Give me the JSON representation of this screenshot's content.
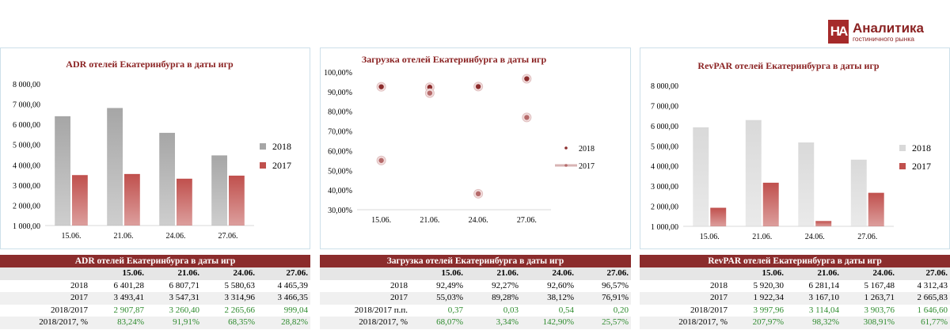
{
  "logo": {
    "mark": "НА",
    "main": "Аналитика",
    "sub": "гостиничного рынка"
  },
  "chart_data": [
    {
      "type": "bar",
      "title": "ADR отелей Екатеринбурга в даты игр",
      "categories": [
        "15.06.",
        "21.06.",
        "24.06.",
        "27.06."
      ],
      "series": [
        {
          "name": "2018",
          "values": [
            6401.28,
            6807.71,
            5580.63,
            4465.39
          ],
          "color": "#a6a6a6"
        },
        {
          "name": "2017",
          "values": [
            3493.41,
            3547.31,
            3314.96,
            3466.35
          ],
          "color": "#c0504d"
        }
      ],
      "ylim": [
        1000,
        8000
      ],
      "yticks": [
        "1 000,00",
        "2 000,00",
        "3 000,00",
        "4 000,00",
        "5 000,00",
        "6 000,00",
        "7 000,00",
        "8 000,00"
      ],
      "legend": "right",
      "grid": false
    },
    {
      "type": "scatter",
      "title": "Загрузка отелей Екатеринбурга в даты игр",
      "categories": [
        "15.06.",
        "21.06.",
        "24.06.",
        "27.06."
      ],
      "series": [
        {
          "name": "2018",
          "values": [
            92.49,
            92.27,
            92.6,
            96.57
          ],
          "color": "#8b2c2c"
        },
        {
          "name": "2017",
          "values": [
            55.03,
            89.28,
            38.12,
            76.91
          ],
          "color": "#b56a6a"
        }
      ],
      "ylim": [
        30,
        100
      ],
      "yticks": [
        "30,00%",
        "40,00%",
        "50,00%",
        "60,00%",
        "70,00%",
        "80,00%",
        "90,00%",
        "100,00%"
      ],
      "legend": "right",
      "grid": false
    },
    {
      "type": "bar",
      "title": "RevPAR отелей Екатеринбурга в даты игр",
      "categories": [
        "15.06.",
        "21.06.",
        "24.06.",
        "27.06."
      ],
      "series": [
        {
          "name": "2018",
          "values": [
            5920.3,
            6281.14,
            5167.48,
            4312.43
          ],
          "color": "#d9d9d9"
        },
        {
          "name": "2017",
          "values": [
            1922.34,
            3167.1,
            1263.71,
            2665.83
          ],
          "color": "#c0504d"
        }
      ],
      "ylim": [
        1000,
        8000
      ],
      "yticks": [
        "1 000,00",
        "2 000,00",
        "3 000,00",
        "4 000,00",
        "5 000,00",
        "6 000,00",
        "7 000,00",
        "8 000,00"
      ],
      "legend": "right",
      "grid": false
    }
  ],
  "tables": [
    {
      "title": "ADR отелей Екатеринбурга в даты игр",
      "headers": [
        "15.06.",
        "21.06.",
        "24.06.",
        "27.06."
      ],
      "rows": [
        {
          "label": "2018",
          "cells": [
            "6 401,28",
            "6 807,71",
            "5 580,63",
            "4 465,39"
          ],
          "green": false
        },
        {
          "label": "2017",
          "cells": [
            "3 493,41",
            "3 547,31",
            "3 314,96",
            "3 466,35"
          ],
          "green": false
        },
        {
          "label": "2018/2017",
          "cells": [
            "2 907,87",
            "3 260,40",
            "2 265,66",
            "999,04"
          ],
          "green": true
        },
        {
          "label": "2018/2017, %",
          "cells": [
            "83,24%",
            "91,91%",
            "68,35%",
            "28,82%"
          ],
          "green": true
        }
      ]
    },
    {
      "title": "Загрузка отелей Екатеринбурга в даты игр",
      "headers": [
        "15.06.",
        "21.06.",
        "24.06.",
        "27.06."
      ],
      "rows": [
        {
          "label": "2018",
          "cells": [
            "92,49%",
            "92,27%",
            "92,60%",
            "96,57%"
          ],
          "green": false
        },
        {
          "label": "2017",
          "cells": [
            "55,03%",
            "89,28%",
            "38,12%",
            "76,91%"
          ],
          "green": false
        },
        {
          "label": "2018/2017 п.п.",
          "cells": [
            "0,37",
            "0,03",
            "0,54",
            "0,20"
          ],
          "green": true
        },
        {
          "label": "2018/2017, %",
          "cells": [
            "68,07%",
            "3,34%",
            "142,90%",
            "25,57%"
          ],
          "green": true
        }
      ]
    },
    {
      "title": "RevPAR отелей Екатеринбурга в даты игр",
      "headers": [
        "15.06.",
        "21.06.",
        "24.06.",
        "27.06."
      ],
      "rows": [
        {
          "label": "2018",
          "cells": [
            "5 920,30",
            "6 281,14",
            "5 167,48",
            "4 312,43"
          ],
          "green": false
        },
        {
          "label": "2017",
          "cells": [
            "1 922,34",
            "3 167,10",
            "1 263,71",
            "2 665,83"
          ],
          "green": false
        },
        {
          "label": "2018/2017",
          "cells": [
            "3 997,96",
            "3 114,04",
            "3 903,76",
            "1 646,60"
          ],
          "green": true
        },
        {
          "label": "2018/2017, %",
          "cells": [
            "207,97%",
            "98,32%",
            "308,91%",
            "61,77%"
          ],
          "green": true
        }
      ]
    }
  ]
}
